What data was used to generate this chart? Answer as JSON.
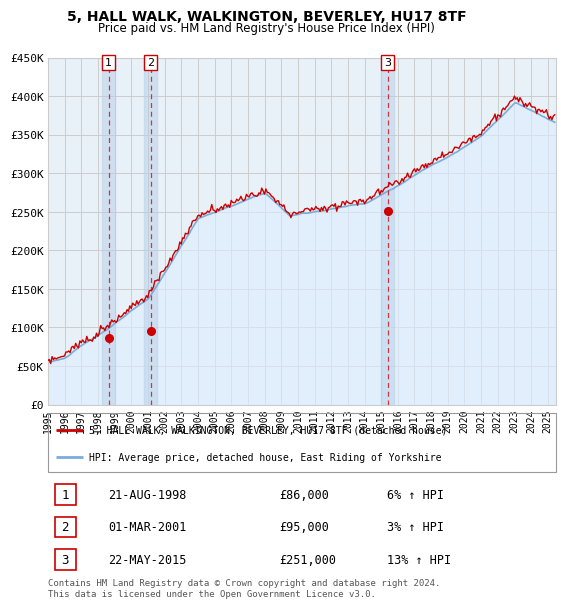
{
  "title": "5, HALL WALK, WALKINGTON, BEVERLEY, HU17 8TF",
  "subtitle": "Price paid vs. HM Land Registry's House Price Index (HPI)",
  "ylim": [
    0,
    450000
  ],
  "yticks": [
    0,
    50000,
    100000,
    150000,
    200000,
    250000,
    300000,
    350000,
    400000,
    450000
  ],
  "ytick_labels": [
    "£0",
    "£50K",
    "£100K",
    "£150K",
    "£200K",
    "£250K",
    "£300K",
    "£350K",
    "£400K",
    "£450K"
  ],
  "transactions": [
    {
      "date": 1998.646,
      "price": 86000,
      "label": "1"
    },
    {
      "date": 2001.162,
      "price": 95000,
      "label": "2"
    },
    {
      "date": 2015.388,
      "price": 251000,
      "label": "3"
    }
  ],
  "transaction_table": [
    {
      "num": "1",
      "date": "21-AUG-1998",
      "price": "£86,000",
      "hpi": "6% ↑ HPI"
    },
    {
      "num": "2",
      "date": "01-MAR-2001",
      "price": "£95,000",
      "hpi": "3% ↑ HPI"
    },
    {
      "num": "3",
      "date": "22-MAY-2015",
      "price": "£251,000",
      "hpi": "13% ↑ HPI"
    }
  ],
  "legend_label_red": "5, HALL WALK, WALKINGTON, BEVERLEY, HU17 8TF (detached house)",
  "legend_label_blue": "HPI: Average price, detached house, East Riding of Yorkshire",
  "footer": "Contains HM Land Registry data © Crown copyright and database right 2024.\nThis data is licensed under the Open Government Licence v3.0.",
  "red_color": "#cc0000",
  "blue_color": "#7aaddb",
  "blue_fill": "#ddeeff",
  "vline_color": "#cc0000",
  "grid_color": "#cccccc",
  "background_color": "#ffffff",
  "chart_bg": "#e8f0f8"
}
